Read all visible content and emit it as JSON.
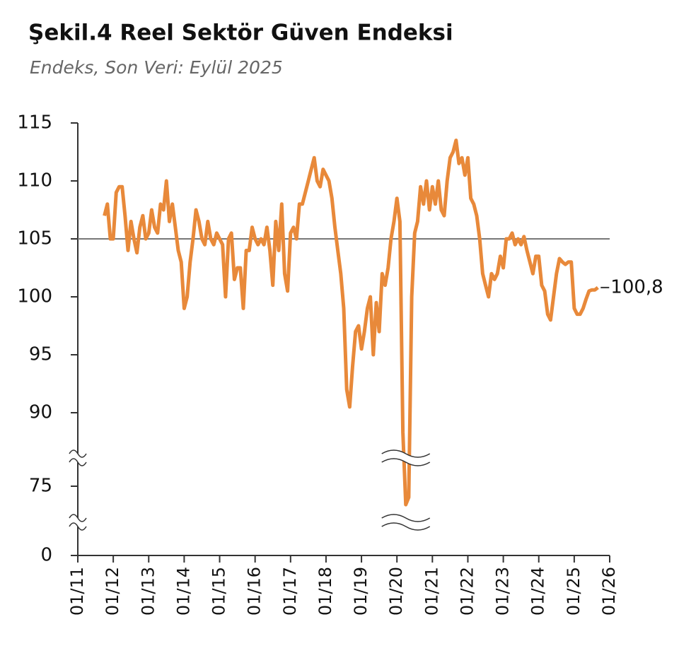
{
  "chart_data": {
    "type": "line",
    "title": "Şekil.4 Reel Sektör Güven Endeksi",
    "subtitle": "Endeks, Son Veri: Eylül 2025",
    "x": [
      "10/11",
      "11/11",
      "12/11",
      "01/12",
      "02/12",
      "03/12",
      "04/12",
      "05/12",
      "06/12",
      "07/12",
      "08/12",
      "09/12",
      "10/12",
      "11/12",
      "12/12",
      "01/13",
      "02/13",
      "03/13",
      "04/13",
      "05/13",
      "06/13",
      "07/13",
      "08/13",
      "09/13",
      "10/13",
      "11/13",
      "12/13",
      "01/14",
      "02/14",
      "03/14",
      "04/14",
      "05/14",
      "06/14",
      "07/14",
      "08/14",
      "09/14",
      "10/14",
      "11/14",
      "12/14",
      "01/15",
      "02/15",
      "03/15",
      "04/15",
      "05/15",
      "06/15",
      "07/15",
      "08/15",
      "09/15",
      "10/15",
      "11/15",
      "12/15",
      "01/16",
      "02/16",
      "03/16",
      "04/16",
      "05/16",
      "06/16",
      "07/16",
      "08/16",
      "09/16",
      "10/16",
      "11/16",
      "12/16",
      "01/17",
      "02/17",
      "03/17",
      "04/17",
      "05/17",
      "06/17",
      "07/17",
      "08/17",
      "09/17",
      "10/17",
      "11/17",
      "12/17",
      "01/18",
      "02/18",
      "03/18",
      "04/18",
      "05/18",
      "06/18",
      "07/18",
      "08/18",
      "09/18",
      "10/18",
      "11/18",
      "12/18",
      "01/19",
      "02/19",
      "03/19",
      "04/19",
      "05/19",
      "06/19",
      "07/19",
      "08/19",
      "09/19",
      "10/19",
      "11/19",
      "12/19",
      "01/20",
      "02/20",
      "03/20",
      "04/20",
      "05/20",
      "06/20",
      "07/20",
      "08/20",
      "09/20",
      "10/20",
      "11/20",
      "12/20",
      "01/21",
      "02/21",
      "03/21",
      "04/21",
      "05/21",
      "06/21",
      "07/21",
      "08/21",
      "09/21",
      "10/21",
      "11/21",
      "12/21",
      "01/22",
      "02/22",
      "03/22",
      "04/22",
      "05/22",
      "06/22",
      "07/22",
      "08/22",
      "09/22",
      "10/22",
      "11/22",
      "12/22",
      "01/23",
      "02/23",
      "03/23",
      "04/23",
      "05/23",
      "06/23",
      "07/23",
      "08/23",
      "09/23",
      "10/23",
      "11/23",
      "12/23",
      "01/24",
      "02/24",
      "03/24",
      "04/24",
      "05/24",
      "06/24",
      "07/24",
      "08/24",
      "09/24",
      "10/24",
      "11/24",
      "12/24",
      "01/25",
      "02/25",
      "03/25",
      "04/25",
      "05/25",
      "06/25",
      "07/25",
      "08/25",
      "09/25"
    ],
    "series": [
      {
        "color": "#e8893a",
        "values": [
          107,
          108,
          105,
          105,
          109,
          109.5,
          109.5,
          107,
          104,
          106.5,
          105,
          103.8,
          106,
          107,
          105,
          105.5,
          107.5,
          106,
          105.5,
          108,
          107.5,
          110,
          106.5,
          108,
          106,
          104,
          103,
          99,
          100,
          103,
          105,
          107.5,
          106.5,
          105,
          104.5,
          106.5,
          105,
          104.5,
          105.5,
          105,
          104.5,
          100,
          105,
          105.5,
          101.5,
          102.5,
          102.5,
          99,
          104,
          104,
          106,
          105,
          104.5,
          105,
          104.5,
          106,
          104,
          101,
          106.5,
          104,
          108,
          102,
          100.5,
          105.5,
          106,
          105,
          108,
          108,
          109,
          110,
          111,
          112,
          110,
          109.5,
          111,
          110.5,
          110,
          108.5,
          106,
          104,
          102,
          99,
          92,
          90.5,
          94,
          97,
          97.5,
          95.5,
          97,
          99,
          100,
          95,
          99.5,
          97,
          102,
          101,
          102.5,
          105,
          106.5,
          108.5,
          106.5,
          86,
          55,
          63,
          100,
          105.5,
          106.5,
          109.5,
          108,
          110,
          107.5,
          109.5,
          108,
          110,
          107.5,
          107,
          110,
          112,
          112.5,
          113.5,
          111.5,
          112,
          110.5,
          112,
          108.5,
          108,
          107,
          105,
          102,
          101,
          100,
          102,
          101.5,
          102,
          103.5,
          102.5,
          105,
          105,
          105.5,
          104.5,
          105,
          104.5,
          105.2,
          104,
          103,
          102,
          103.5,
          103.5,
          101,
          100.5,
          98.5,
          98,
          100,
          102,
          103.3,
          103,
          102.8,
          103,
          103,
          99,
          98.5,
          98.5,
          99,
          99.8,
          100.5,
          100.6,
          100.6,
          100.8
        ],
        "value_labels": [
          null,
          null,
          null,
          null,
          null,
          null,
          null,
          null,
          null,
          null,
          null,
          null,
          null,
          null,
          null,
          null,
          null,
          null,
          null,
          null,
          null,
          null,
          null,
          null,
          null,
          null,
          null,
          null,
          null,
          null,
          null,
          null,
          null,
          null,
          null,
          null,
          null,
          null,
          null,
          null,
          null,
          null,
          null,
          null,
          null,
          null,
          null,
          null,
          null,
          null,
          null,
          null,
          null,
          null,
          null,
          null,
          null,
          null,
          null,
          null,
          null,
          null,
          null,
          null,
          null,
          null,
          null,
          null,
          null,
          null,
          null,
          null,
          null,
          null,
          null,
          null,
          null,
          null,
          null,
          null,
          null,
          null,
          null,
          null,
          null,
          null,
          null,
          null,
          null,
          null,
          null,
          null,
          null,
          null,
          null,
          null,
          null,
          null,
          null,
          null,
          null,
          null,
          null,
          null,
          null,
          null,
          null,
          null,
          null,
          null,
          null,
          null,
          null,
          null,
          null,
          null,
          null,
          null,
          null,
          null,
          null,
          null,
          null,
          null,
          null,
          null,
          null,
          null,
          null,
          null,
          null,
          null,
          null,
          null,
          null,
          null,
          null,
          null,
          null,
          null,
          null,
          null,
          null,
          null,
          null,
          null,
          null,
          null,
          null,
          null,
          null,
          null,
          null,
          null,
          null,
          null,
          null,
          null,
          null,
          null,
          null,
          null,
          null,
          null,
          null,
          null,
          null,
          "100,8"
        ]
      }
    ],
    "xticks": [
      "01/11",
      "01/12",
      "01/13",
      "01/14",
      "01/15",
      "01/16",
      "01/17",
      "01/18",
      "01/19",
      "01/20",
      "01/21",
      "01/22",
      "01/23",
      "01/24",
      "01/25",
      "01/26"
    ],
    "ylim": [
      0,
      115
    ],
    "yticks": [
      115,
      110,
      105,
      100,
      95,
      90,
      75,
      0
    ],
    "reference_line": {
      "value": 105,
      "color": "#777777"
    },
    "axis_break": true
  }
}
